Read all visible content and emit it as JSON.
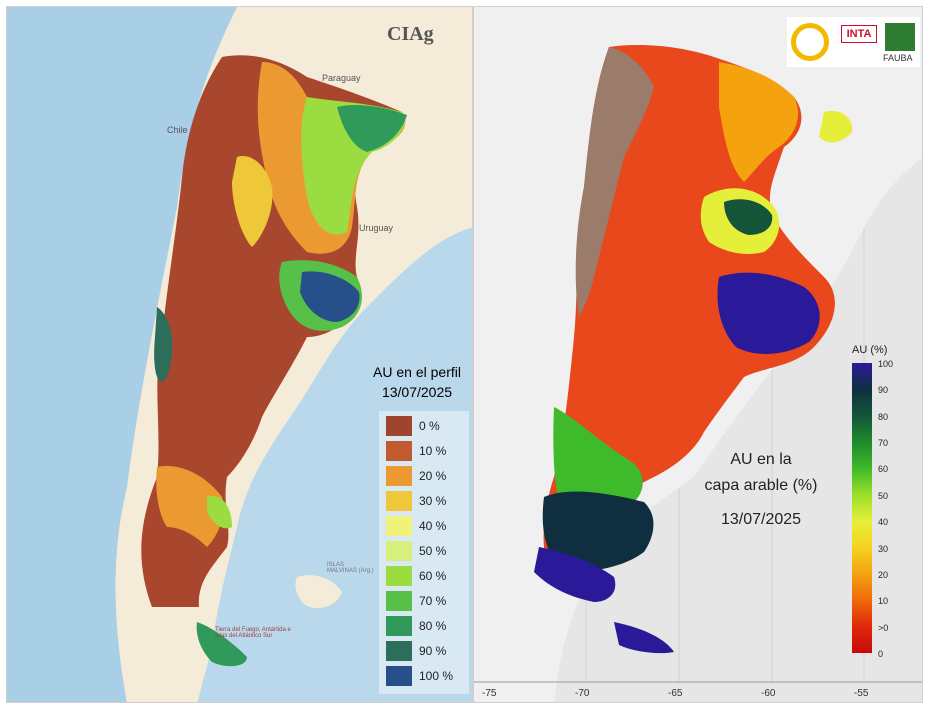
{
  "left_map": {
    "logo_text": "CIAg",
    "countries": {
      "paraguay": "Paraguay",
      "chile": "Chile",
      "uruguay": "Uruguay"
    },
    "islands_label": "ISLAS MALVINAS (Arg.)",
    "tierra_label": "Tierra del Fuego, Antártida e Islas del Atlántico Sur",
    "legend": {
      "title": "AU en el perfil",
      "date": "13/07/2025",
      "items": [
        {
          "label": "0 %",
          "color": "#a0452d"
        },
        {
          "label": "10 %",
          "color": "#c25a30"
        },
        {
          "label": "20 %",
          "color": "#eb9a32"
        },
        {
          "label": "30 %",
          "color": "#efc83a"
        },
        {
          "label": "40 %",
          "color": "#f1f27a"
        },
        {
          "label": "50 %",
          "color": "#d6ef7d"
        },
        {
          "label": "60 %",
          "color": "#9bdd41"
        },
        {
          "label": "70 %",
          "color": "#56c048"
        },
        {
          "label": "80 %",
          "color": "#2f9a5a"
        },
        {
          "label": "90 %",
          "color": "#2d6e5a"
        },
        {
          "label": "100 %",
          "color": "#274f8a"
        }
      ]
    }
  },
  "right_map": {
    "title_line1": "AU en la",
    "title_line2": "capa arable (%)",
    "date": "13/07/2025",
    "logos": [
      "INTA",
      "FAUBA"
    ],
    "colorbar": {
      "title": "AU (%)",
      "ticks": [
        "100",
        "90",
        "80",
        "70",
        "60",
        "50",
        "40",
        "30",
        "20",
        "10",
        ">0",
        "0"
      ],
      "colors": [
        "#2a1a9a",
        "#0f2f40",
        "#14553a",
        "#1f8a2c",
        "#3fba2a",
        "#9adf2a",
        "#e5ef3a",
        "#f5d21f",
        "#f5a20f",
        "#ef6a0a",
        "#e0280a",
        "#c80a0a"
      ]
    },
    "x_axis": {
      "ticks": [
        "-75",
        "-70",
        "-65",
        "-60",
        "-55"
      ]
    }
  }
}
